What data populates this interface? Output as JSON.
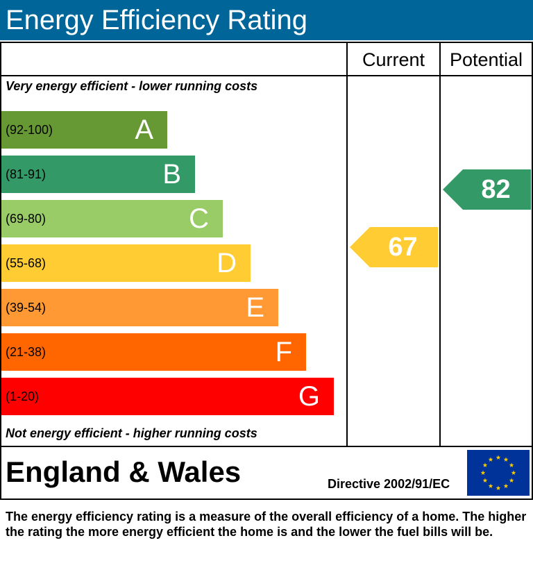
{
  "title": "Energy Efficiency Rating",
  "columns": {
    "current": "Current",
    "potential": "Potential"
  },
  "notes": {
    "top": "Very energy efficient - lower running costs",
    "bottom": "Not energy efficient - higher running costs"
  },
  "region": "England & Wales",
  "directive": "Directive 2002/91/EC",
  "footnote": "The energy efficiency rating is a measure of the overall efficiency of a home. The higher the rating the more energy efficient the home is and the lower the fuel bills will be.",
  "flag_icon": "eu-flag-icon",
  "chart_data": {
    "type": "bar",
    "title": "Energy Efficiency Rating",
    "categories": [
      "A",
      "B",
      "C",
      "D",
      "E",
      "F",
      "G"
    ],
    "bands": [
      {
        "letter": "A",
        "range": "(92-100)",
        "min": 92,
        "max": 100,
        "color": "#669933"
      },
      {
        "letter": "B",
        "range": "(81-91)",
        "min": 81,
        "max": 91,
        "color": "#339966"
      },
      {
        "letter": "C",
        "range": "(69-80)",
        "min": 69,
        "max": 80,
        "color": "#99cc66"
      },
      {
        "letter": "D",
        "range": "(55-68)",
        "min": 55,
        "max": 68,
        "color": "#ffcc33"
      },
      {
        "letter": "E",
        "range": "(39-54)",
        "min": 39,
        "max": 54,
        "color": "#ff9933"
      },
      {
        "letter": "F",
        "range": "(21-38)",
        "min": 21,
        "max": 38,
        "color": "#ff6600"
      },
      {
        "letter": "G",
        "range": "(1-20)",
        "min": 1,
        "max": 20,
        "color": "#ff0000"
      }
    ],
    "current": {
      "value": 67,
      "band": "D",
      "color": "#ffcc33"
    },
    "potential": {
      "value": 82,
      "band": "B",
      "color": "#339966"
    }
  }
}
